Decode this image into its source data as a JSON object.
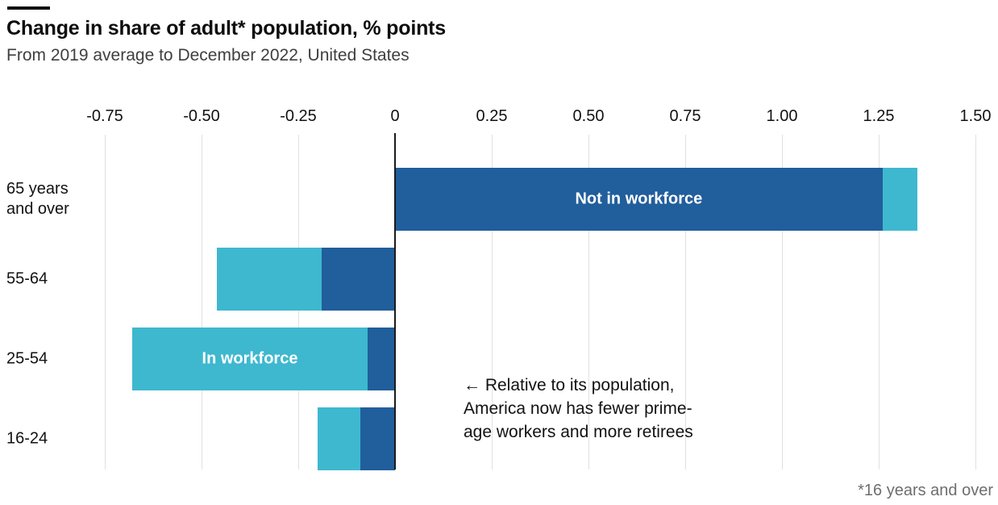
{
  "chart_data": {
    "type": "bar",
    "orientation": "horizontal",
    "stacked": true,
    "title": "Change in share of adult* population, % points",
    "subtitle": "From 2019 average to December 2022, United States",
    "footnote": "*16 years and over",
    "annotation": "← Relative to its population,\nAmerica now has fewer prime-\nage workers and more retirees",
    "categories": [
      "65 years and over",
      "55-64",
      "25-54",
      "16-24"
    ],
    "series": [
      {
        "name": "Not in workforce",
        "color": "#215e9c",
        "values": [
          1.26,
          -0.19,
          -0.07,
          -0.09
        ]
      },
      {
        "name": "In workforce",
        "color": "#3eb8cf",
        "values": [
          0.09,
          -0.27,
          -0.61,
          -0.11
        ]
      }
    ],
    "stacked_totals": [
      1.35,
      -0.46,
      -0.68,
      -0.2
    ],
    "bar_labels": [
      {
        "text": "Not in workforce",
        "category_index": 0,
        "series_index": 0
      },
      {
        "text": "In workforce",
        "category_index": 2,
        "series_index": 1
      }
    ],
    "x_axis": {
      "ticks": [
        -0.75,
        -0.5,
        -0.25,
        0,
        0.25,
        0.5,
        0.75,
        1,
        1.25,
        1.5
      ],
      "tick_labels": [
        "-0.75",
        "-0.50",
        "-0.25",
        "0",
        "0.25",
        "0.50",
        "0.75",
        "1.00",
        "1.25",
        "1.50"
      ],
      "range": [
        -0.92,
        1.56
      ],
      "grid": true,
      "tick_step": 0.25
    },
    "legend": "labels-inside-bars",
    "colors": {
      "grid": "#e1e1e1",
      "zero_line": "#1a1a1a",
      "top_rule": "#121212",
      "title_text": "#0d0d0d",
      "subtitle_text": "#3f3f3f",
      "axis_text": "#121212",
      "bar_label_text": "#ffffff",
      "footnote_text": "#6e6e6e"
    }
  }
}
